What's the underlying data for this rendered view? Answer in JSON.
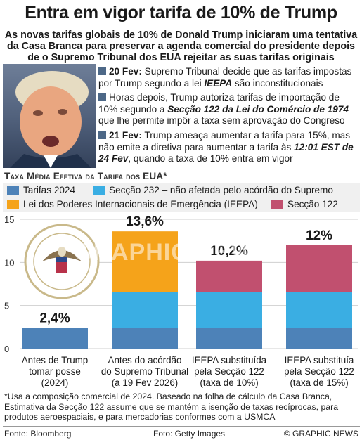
{
  "title": "Entra em vigor tarifa de 10% de Trump",
  "subtitle": "As novas tarifas globais de 10% de Donald Trump iniciaram uma tentativa da Casa Branca para preservar a agenda comercial do presidente depois de o Supremo Tribunal dos EUA rejeitar as suas tarifas originais",
  "timeline": [
    {
      "date": "20 Fev:",
      "pre": " Supremo Tribunal decide que as tarifas impostas por Trump segundo a lei ",
      "em": "IEEPA",
      "post": " são inconstitucionais"
    },
    {
      "date": "",
      "pre": "Horas depois, Trump autoriza tarifas de importação de 10% segundo a ",
      "em": "Secção 122 da Lei do Comércio de 1974",
      "post": " – que lhe permite impôr a taxa sem aprovação do Congreso"
    },
    {
      "date": "21 Fev:",
      "pre": " Trump ameaça aumentar a tarifa para 15%, mas não emite a diretiva para aumentar a tarifa às ",
      "em": "12:01 EST de 24 Fev",
      "post": ", quando a taxa de 10% entra em vigor"
    }
  ],
  "seal_text": "SEAL OF THE SUPREME COURT OF THE UNITED STATES",
  "watermark": "GRAPHIC NEWS",
  "chart_data": {
    "type": "bar",
    "title": "Taxa Média Efetiva da Tarifa dos EUA*",
    "legend": [
      {
        "name": "Tarifas 2024",
        "color": "#4d82b8"
      },
      {
        "name": "Secção 232 – não afetada pelo acórdão do Supremo",
        "color": "#3aaee3"
      },
      {
        "name": "Lei dos Poderes Internacionais de Emergência (IEEPA)",
        "color": "#f5a31a"
      },
      {
        "name": "Secção 122",
        "color": "#c1506f"
      }
    ],
    "categories": [
      [
        "Antes de Trump",
        "tomar posse",
        "(2024)"
      ],
      [
        "Antes do acórdão",
        "do Supremo Tribunal",
        "(a 19 Fev 2026)"
      ],
      [
        "IEEPA substituída",
        "pela Secção 122",
        "(taxa de 10%)"
      ],
      [
        "IEEPA substituía",
        "pela Secção 122",
        "(taxa de 15%)"
      ]
    ],
    "series": [
      {
        "name": "Tarifas 2024",
        "values": [
          2.4,
          2.4,
          2.4,
          2.4
        ]
      },
      {
        "name": "Secção 232 – não afetada pelo acórdão do Supremo",
        "values": [
          0,
          4.2,
          4.2,
          4.2
        ]
      },
      {
        "name": "Lei dos Poderes Internacionais de Emergência (IEEPA)",
        "values": [
          0,
          7.0,
          0,
          0
        ]
      },
      {
        "name": "Secção 122",
        "values": [
          0,
          0,
          3.6,
          5.4
        ]
      }
    ],
    "totals": [
      "2,4%",
      "13,6%",
      "10,2%",
      "12%"
    ],
    "yticks": [
      0,
      5,
      10,
      15
    ],
    "ylim": [
      0,
      15
    ],
    "grid": true
  },
  "footnote": "*Usa a composição comercial de 2024. Baseado na folha de cálculo da Casa Branca, Estimativa da Secção 122 assume que se mantém a isenção de taxas recíprocas, para produtos aeroespaciais, e para mercadorias conformes com a USMCA",
  "source": "Fonte: Bloomberg",
  "photo_credit": "Foto: Getty Images",
  "copyright": "© GRAPHIC NEWS"
}
